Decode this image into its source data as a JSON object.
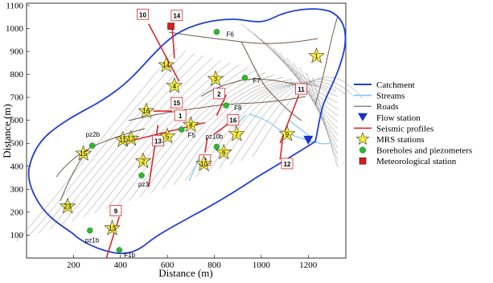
{
  "axes": {
    "xlabel": "Distance (m)",
    "ylabel": "Distance (m)",
    "xticks": [
      "200",
      "400",
      "600",
      "800",
      "1000",
      "1200"
    ],
    "yticks": [
      "100",
      "200",
      "300",
      "400",
      "500",
      "600",
      "700",
      "800",
      "900",
      "1000",
      "1100"
    ]
  },
  "colors": {
    "catchment": "#1f3fd6",
    "streams": "#7ec8f0",
    "roads": "#6b5a4e",
    "flow_station": "#1a2fd1",
    "seismic": "#d9282b",
    "mrs": "#f7ec3a",
    "borehole": "#2fb82f",
    "met_station": "#e01b1b",
    "contour": "#8a8a8a"
  },
  "legend": [
    {
      "key": "catchment",
      "label": "Catchment"
    },
    {
      "key": "streams",
      "label": "Streams"
    },
    {
      "key": "roads",
      "label": "Roads"
    },
    {
      "key": "flow",
      "label": "Flow station"
    },
    {
      "key": "seismic",
      "label": "Seismic profiles"
    },
    {
      "key": "mrs",
      "label": "MRS stations"
    },
    {
      "key": "bore",
      "label": "Boreholes and piezometers"
    },
    {
      "key": "met",
      "label": "Meteorological station"
    }
  ],
  "mrs_stations": [
    {
      "n": "1",
      "x": 1235,
      "y": 880
    },
    {
      "n": "2",
      "x": 497,
      "y": 422
    },
    {
      "n": "3",
      "x": 805,
      "y": 780
    },
    {
      "n": "4",
      "x": 630,
      "y": 750
    },
    {
      "n": "5",
      "x": 600,
      "y": 530
    },
    {
      "n": "6",
      "x": 840,
      "y": 460
    },
    {
      "n": "7",
      "x": 895,
      "y": 540
    },
    {
      "n": "8",
      "x": 700,
      "y": 580
    },
    {
      "n": "9",
      "x": 1110,
      "y": 540
    },
    {
      "n": "10",
      "x": 755,
      "y": 410
    },
    {
      "n": "11",
      "x": 410,
      "y": 515
    },
    {
      "n": "12",
      "x": 445,
      "y": 520
    },
    {
      "n": "13",
      "x": 365,
      "y": 130
    },
    {
      "n": "14",
      "x": 595,
      "y": 840
    },
    {
      "n": "15",
      "x": 242,
      "y": 455
    },
    {
      "n": "16",
      "x": 510,
      "y": 640
    },
    {
      "n": "23",
      "x": 175,
      "y": 225
    }
  ],
  "boreholes": [
    {
      "name": "F6",
      "x": 810,
      "y": 985,
      "lx": 12,
      "ly": 6
    },
    {
      "name": "F7",
      "x": 930,
      "y": 785,
      "lx": 10,
      "ly": 6
    },
    {
      "name": "F8",
      "x": 850,
      "y": 665,
      "lx": 10,
      "ly": 6
    },
    {
      "name": "F5",
      "x": 660,
      "y": 560,
      "lx": 8,
      "ly": 10
    },
    {
      "name": "pz10b",
      "x": 810,
      "y": 485,
      "lx": -14,
      "ly": -10
    },
    {
      "name": "pz2b",
      "x": 280,
      "y": 490,
      "lx": -8,
      "ly": -11
    },
    {
      "name": "pz3",
      "x": 490,
      "y": 360,
      "lx": -4,
      "ly": 14
    },
    {
      "name": "pz1b",
      "x": 270,
      "y": 120,
      "lx": -6,
      "ly": 15
    },
    {
      "name": "F1b",
      "x": 395,
      "y": 35,
      "lx": 6,
      "ly": 9
    }
  ],
  "seismic_profiles": [
    {
      "n": "1",
      "pts": [
        [
          440,
          510
        ],
        [
          760,
          590
        ]
      ],
      "lab": [
        655,
        620
      ]
    },
    {
      "n": "2",
      "pts": [
        [
          810,
          620
        ],
        [
          850,
          710
        ]
      ],
      "lab": [
        820,
        715
      ]
    },
    {
      "n": "3",
      "pts": [
        [
          760,
          460
        ],
        [
          770,
          520
        ]
      ],
      "lab": [
        760,
        425
      ]
    },
    {
      "n": "9",
      "pts": [
        [
          340,
          0
        ],
        [
          395,
          180
        ]
      ],
      "lab": [
        380,
        205
      ]
    },
    {
      "n": "10",
      "pts": [
        [
          520,
          1020
        ],
        [
          650,
          770
        ]
      ],
      "lab": [
        495,
        1060
      ]
    },
    {
      "n": "11",
      "pts": [
        [
          1080,
          500
        ],
        [
          1160,
          710
        ]
      ],
      "lab": [
        1170,
        735
      ]
    },
    {
      "n": "12",
      "pts": [
        [
          1080,
          430
        ],
        [
          1090,
          510
        ]
      ],
      "lab": [
        1110,
        410
      ]
    },
    {
      "n": "13",
      "pts": [
        [
          520,
          310
        ],
        [
          560,
          580
        ]
      ],
      "lab": [
        560,
        510
      ]
    },
    {
      "n": "14",
      "pts": [
        [
          620,
          1010
        ],
        [
          630,
          870
        ]
      ],
      "lab": [
        640,
        1055
      ]
    },
    {
      "n": "15",
      "pts": [
        [
          540,
          640
        ],
        [
          620,
          640
        ]
      ],
      "lab": [
        640,
        675
      ]
    },
    {
      "n": "16",
      "pts": [
        [
          800,
          540
        ],
        [
          880,
          600
        ]
      ],
      "lab": [
        880,
        600
      ]
    }
  ],
  "flow_station": {
    "x": 1200,
    "y": 515
  },
  "met_station": {
    "x": 615,
    "y": 1010
  }
}
